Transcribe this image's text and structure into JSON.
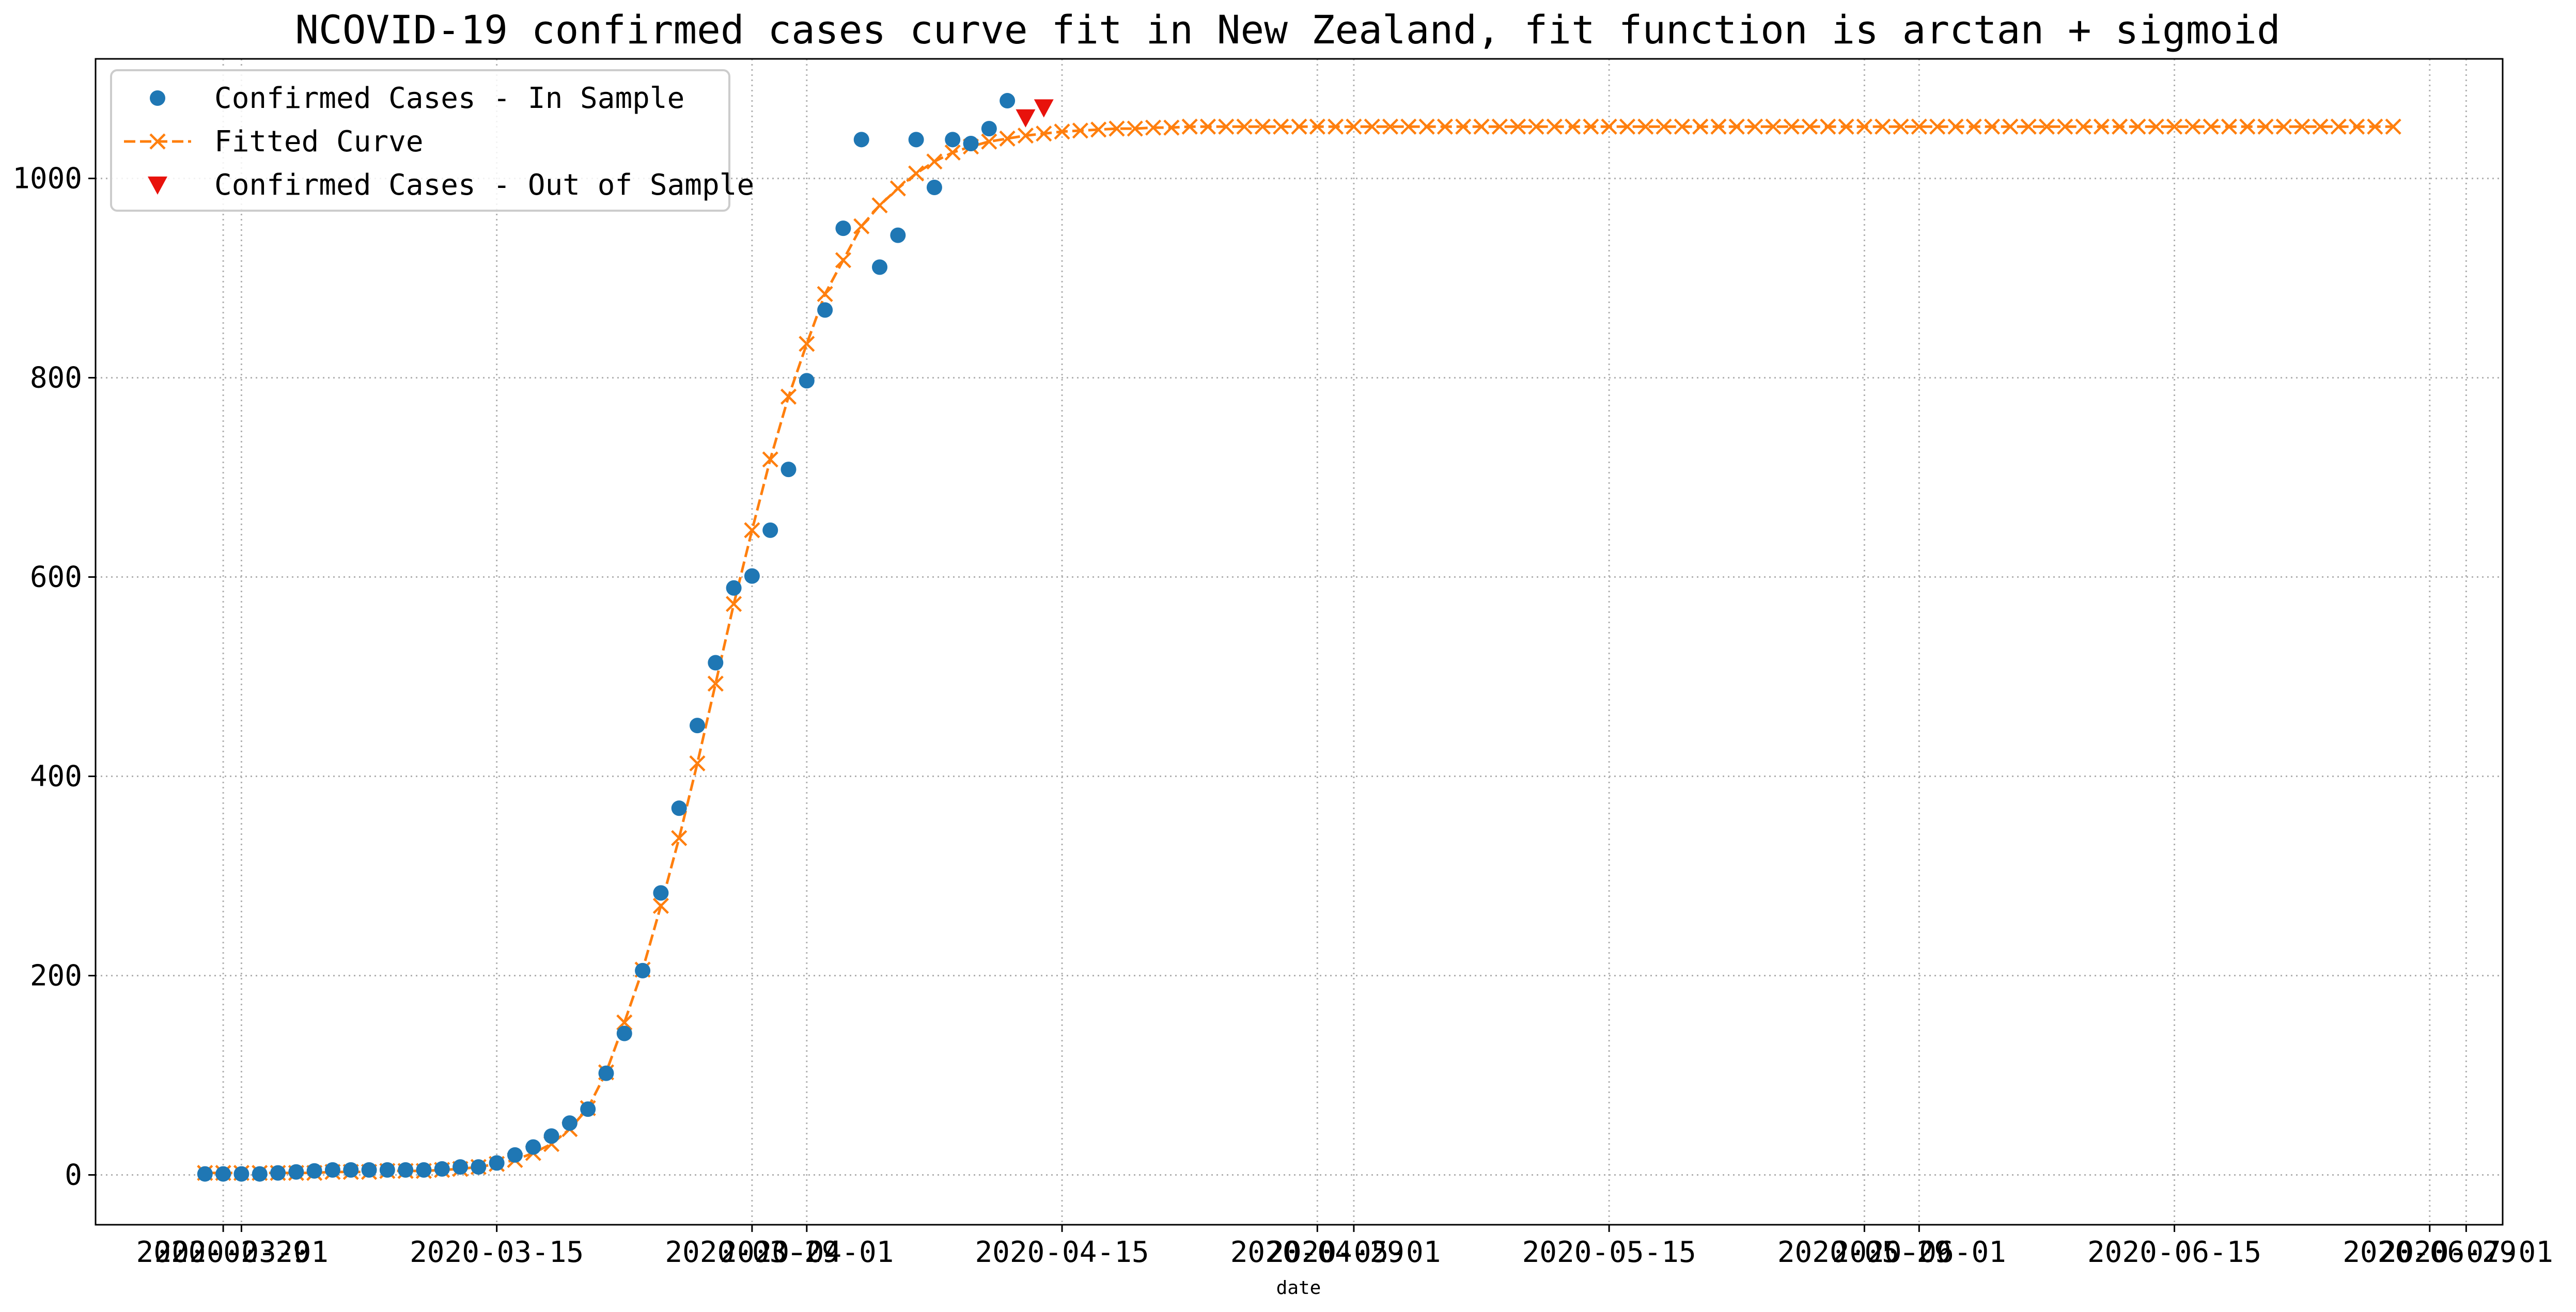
{
  "chart_data": {
    "type": "line",
    "title": "NCOVID-19 confirmed cases curve fit in New Zealand, fit function is arctan + sigmoid",
    "xlabel": "date",
    "ylabel": "",
    "x_axis_kind": "date",
    "xlim": [
      "2020-02-22",
      "2020-07-03"
    ],
    "ylim": [
      -50,
      1120
    ],
    "grid": true,
    "grid_style": "dotted",
    "legend_position": "upper-left",
    "x_tick_labels": [
      "2020-02-29",
      "2020-03-01",
      "2020-03-15",
      "2020-03-29",
      "2020-04-01",
      "2020-04-15",
      "2020-04-29",
      "2020-05-01",
      "2020-05-15",
      "2020-05-29",
      "2020-06-01",
      "2020-06-15",
      "2020-06-29",
      "2020-07-01"
    ],
    "y_ticks": [
      0,
      200,
      400,
      600,
      800,
      1000
    ],
    "y_tick_labels": [
      "0",
      "200",
      "400",
      "600",
      "800",
      "1000"
    ],
    "series": [
      {
        "name": "Confirmed Cases - In Sample",
        "style": "points",
        "marker": "circle",
        "color": "#1f77b4",
        "x": [
          "2020-02-28",
          "2020-02-29",
          "2020-03-01",
          "2020-03-02",
          "2020-03-03",
          "2020-03-04",
          "2020-03-05",
          "2020-03-06",
          "2020-03-07",
          "2020-03-08",
          "2020-03-09",
          "2020-03-10",
          "2020-03-11",
          "2020-03-12",
          "2020-03-13",
          "2020-03-14",
          "2020-03-15",
          "2020-03-16",
          "2020-03-17",
          "2020-03-18",
          "2020-03-19",
          "2020-03-20",
          "2020-03-21",
          "2020-03-22",
          "2020-03-23",
          "2020-03-24",
          "2020-03-25",
          "2020-03-26",
          "2020-03-27",
          "2020-03-28",
          "2020-03-29",
          "2020-03-30",
          "2020-03-31",
          "2020-04-01",
          "2020-04-02",
          "2020-04-03",
          "2020-04-04",
          "2020-04-05",
          "2020-04-06",
          "2020-04-07",
          "2020-04-08",
          "2020-04-09",
          "2020-04-10",
          "2020-04-11",
          "2020-04-12"
        ],
        "values": [
          1,
          1,
          1,
          1,
          2,
          3,
          4,
          5,
          5,
          5,
          5,
          5,
          5,
          6,
          8,
          8,
          12,
          20,
          28,
          39,
          52,
          66,
          102,
          142,
          205,
          283,
          368,
          451,
          514,
          589,
          601,
          647,
          708,
          797,
          868,
          950,
          1039,
          911,
          943,
          1039,
          991,
          1039,
          1035,
          1050,
          1078
        ]
      },
      {
        "name": "Fitted Curve",
        "style": "dashed-line-x-markers",
        "color": "#ff7f0e",
        "x_start": "2020-02-28",
        "x_step_days": 1,
        "values": [
          2,
          2,
          2,
          2,
          2,
          2,
          2,
          3,
          3,
          3,
          4,
          4,
          4,
          5,
          6,
          8,
          11,
          15,
          22,
          31,
          46,
          67,
          103,
          153,
          206,
          270,
          338,
          413,
          493,
          573,
          647,
          718,
          781,
          834,
          884,
          918,
          952,
          973,
          990,
          1005,
          1017,
          1026,
          1032,
          1037,
          1040,
          1043,
          1045,
          1047,
          1048,
          1049,
          1050,
          1050,
          1051,
          1051,
          1052,
          1052,
          1052,
          1052,
          1052,
          1052,
          1052,
          1052,
          1052,
          1052,
          1052,
          1052,
          1052,
          1052,
          1052,
          1052,
          1052,
          1052,
          1052,
          1052,
          1052,
          1052,
          1052,
          1052,
          1052,
          1052,
          1052,
          1052,
          1052,
          1052,
          1052,
          1052,
          1052,
          1052,
          1052,
          1052,
          1052,
          1052,
          1052,
          1052,
          1052,
          1052,
          1052,
          1052,
          1052,
          1052,
          1052,
          1052,
          1052,
          1052,
          1052,
          1052,
          1052,
          1052,
          1052,
          1052,
          1052,
          1052,
          1052,
          1052,
          1052,
          1052,
          1052,
          1052,
          1052,
          1052,
          1052
        ]
      },
      {
        "name": "Confirmed Cases - Out of Sample",
        "style": "points",
        "marker": "triangle-down",
        "color": "#e8120c",
        "x": [
          "2020-04-13",
          "2020-04-14"
        ],
        "values": [
          1061,
          1071
        ]
      }
    ]
  }
}
